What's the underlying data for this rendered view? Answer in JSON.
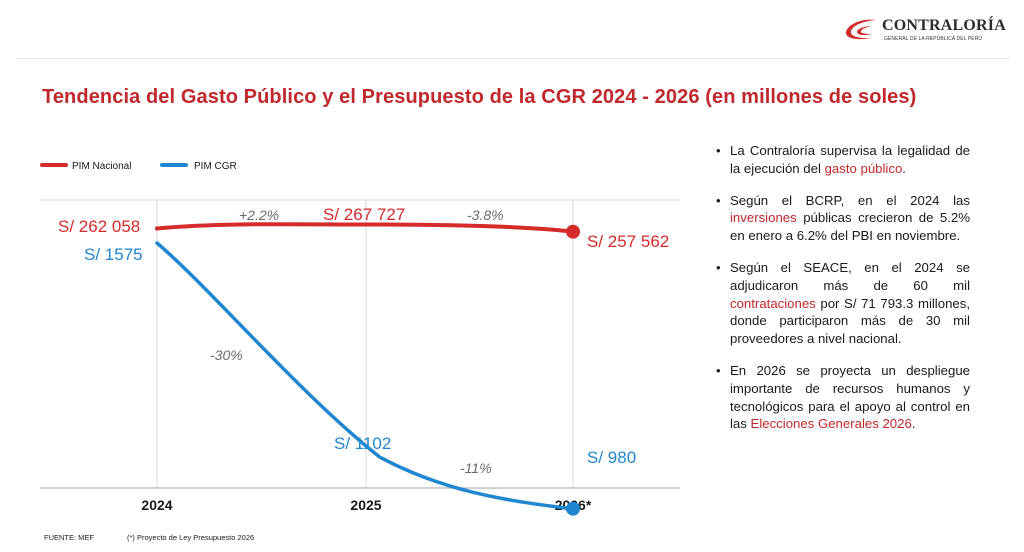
{
  "header": {
    "logo_name": "CONTRALORÍA",
    "logo_sub": "GENERAL DE LA REPÚBLICA DEL PERÚ",
    "title": "Tendencia del Gasto Público y el Presupuesto de la CGR 2024 - 2026 (en millones de soles)"
  },
  "colors": {
    "nacional": "#d52b2b",
    "cgr": "#1f87d0",
    "accent": "#c0282d"
  },
  "chart_data": {
    "type": "line",
    "categories": [
      "2024",
      "2025",
      "2026*"
    ],
    "series": [
      {
        "name": "PIM Nacional",
        "values": [
          262058,
          267727,
          257562
        ],
        "value_labels": [
          "S/ 262 058",
          "S/ 267 727",
          "S/ 257 562"
        ],
        "change_labels": [
          "+2.2%",
          "-3.8%"
        ]
      },
      {
        "name": "PIM CGR",
        "values": [
          1575,
          1102,
          980
        ],
        "value_labels": [
          "S/ 1575",
          "S/ 1102",
          "S/ 980"
        ],
        "change_labels": [
          "-30%",
          "-11%"
        ]
      }
    ],
    "legend_position": "top-left",
    "grid": "vertical"
  },
  "bullets": [
    [
      {
        "t": "La Contraloría supervisa la legalidad de la ejecución del "
      },
      {
        "t": "gasto público",
        "hl": true
      },
      {
        "t": "."
      }
    ],
    [
      {
        "t": "Según el BCRP, en el 2024 las "
      },
      {
        "t": "inversiones",
        "hl": true
      },
      {
        "t": " públicas crecieron de 5.2% en enero a 6.2% del PBI en noviembre."
      }
    ],
    [
      {
        "t": "Según el SEACE, en el 2024 se adjudicaron más de 60 mil "
      },
      {
        "t": "contrataciones",
        "hl": true
      },
      {
        "t": " por S/ 71 793.3 millones, donde participaron más de 30 mil proveedores a nivel nacional."
      }
    ],
    [
      {
        "t": "En 2026 se proyecta un despliegue importante de recursos humanos y tecnológicos para el apoyo al control en las "
      },
      {
        "t": "Elecciones Generales 2026",
        "hl": true
      },
      {
        "t": "."
      }
    ]
  ],
  "bullet_marker": "•",
  "footer": {
    "source": "FUENTE: MEF",
    "note": "(*) Proyecto de Ley Presupuesto 2026"
  }
}
